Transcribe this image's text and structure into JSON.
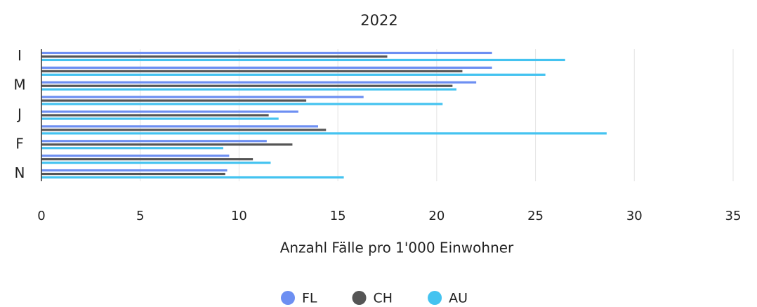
{
  "chart_data": {
    "type": "bar",
    "orientation": "horizontal",
    "title": "2022",
    "xlabel": "Anzahl Fälle pro 1'000 Einwohner",
    "categories": [
      "I",
      null,
      "M",
      null,
      "J",
      null,
      "F",
      null,
      "N"
    ],
    "series": [
      {
        "name": "FL",
        "color": "#6d8ff2",
        "values": [
          22.8,
          22.8,
          22,
          16.3,
          13,
          14,
          11.4,
          9.5,
          9.4
        ]
      },
      {
        "name": "CH",
        "color": "#555555",
        "values": [
          17.5,
          21.3,
          20.8,
          13.4,
          11.5,
          14.4,
          12.7,
          10.7,
          9.3
        ]
      },
      {
        "name": "AU",
        "color": "#44c3f0",
        "values": [
          26.5,
          25.5,
          21,
          20.3,
          12,
          28.6,
          9.2,
          11.6,
          15.3
        ]
      }
    ],
    "xlim": [
      0,
      35
    ],
    "xticks": [
      0,
      5,
      10,
      15,
      20,
      25,
      30,
      35
    ],
    "grid": true
  }
}
